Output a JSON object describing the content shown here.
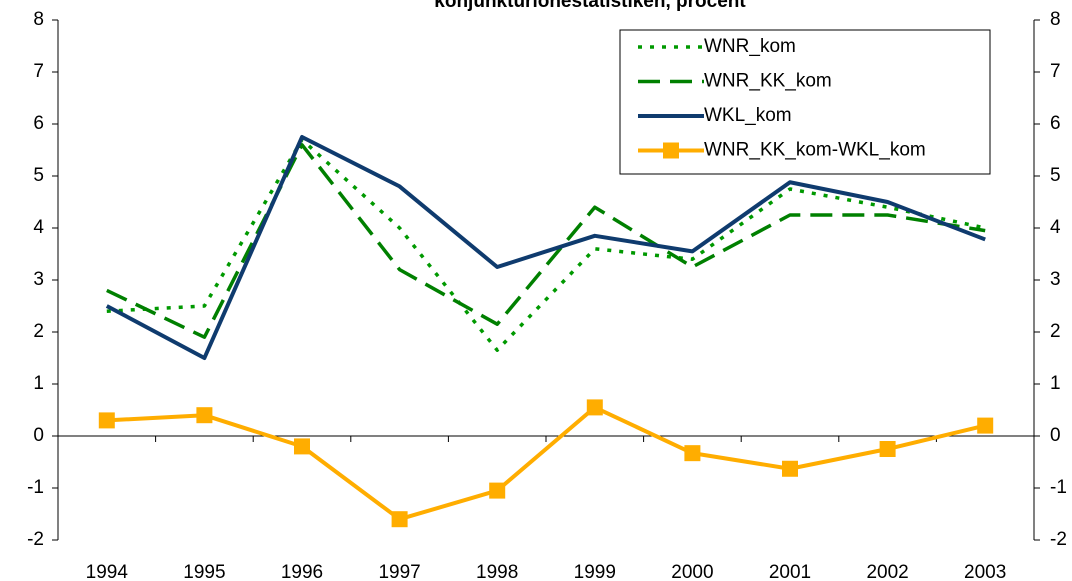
{
  "chart_data": {
    "type": "line",
    "title": "konjunkturlönestatistiken, procent",
    "categories": [
      "1994",
      "1995",
      "1996",
      "1997",
      "1998",
      "1999",
      "2000",
      "2001",
      "2002",
      "2003"
    ],
    "series": [
      {
        "name": "WNR_kom",
        "color": "#009900",
        "style": "dotted",
        "values": [
          2.4,
          2.5,
          5.7,
          4.0,
          1.65,
          3.6,
          3.4,
          4.75,
          4.4,
          4.0
        ]
      },
      {
        "name": "WNR_KK_kom",
        "color": "#008000",
        "style": "dashed",
        "values": [
          2.8,
          1.9,
          5.6,
          3.2,
          2.15,
          4.4,
          3.25,
          4.25,
          4.25,
          3.95
        ]
      },
      {
        "name": "WKL_kom",
        "color": "#0f3b6e",
        "style": "solid",
        "values": [
          2.5,
          1.5,
          5.75,
          4.8,
          3.25,
          3.85,
          3.55,
          4.88,
          4.5,
          3.78
        ]
      },
      {
        "name": "WNR_KK_kom-WKL_kom",
        "color": "#ffad00",
        "style": "solid",
        "marker": "square",
        "values": [
          0.3,
          0.4,
          -0.2,
          -1.6,
          -1.05,
          0.55,
          -0.33,
          -0.63,
          -0.25,
          0.2
        ]
      }
    ],
    "ylim": [
      -2,
      8
    ],
    "yticks": [
      -2,
      -1,
      0,
      1,
      2,
      3,
      4,
      5,
      6,
      7,
      8
    ],
    "y2lim": [
      -2,
      8
    ],
    "y2ticks": [
      -2,
      -1,
      0,
      1,
      2,
      3,
      4,
      5,
      6,
      7,
      8
    ],
    "grid": false,
    "legend": "upper right"
  }
}
